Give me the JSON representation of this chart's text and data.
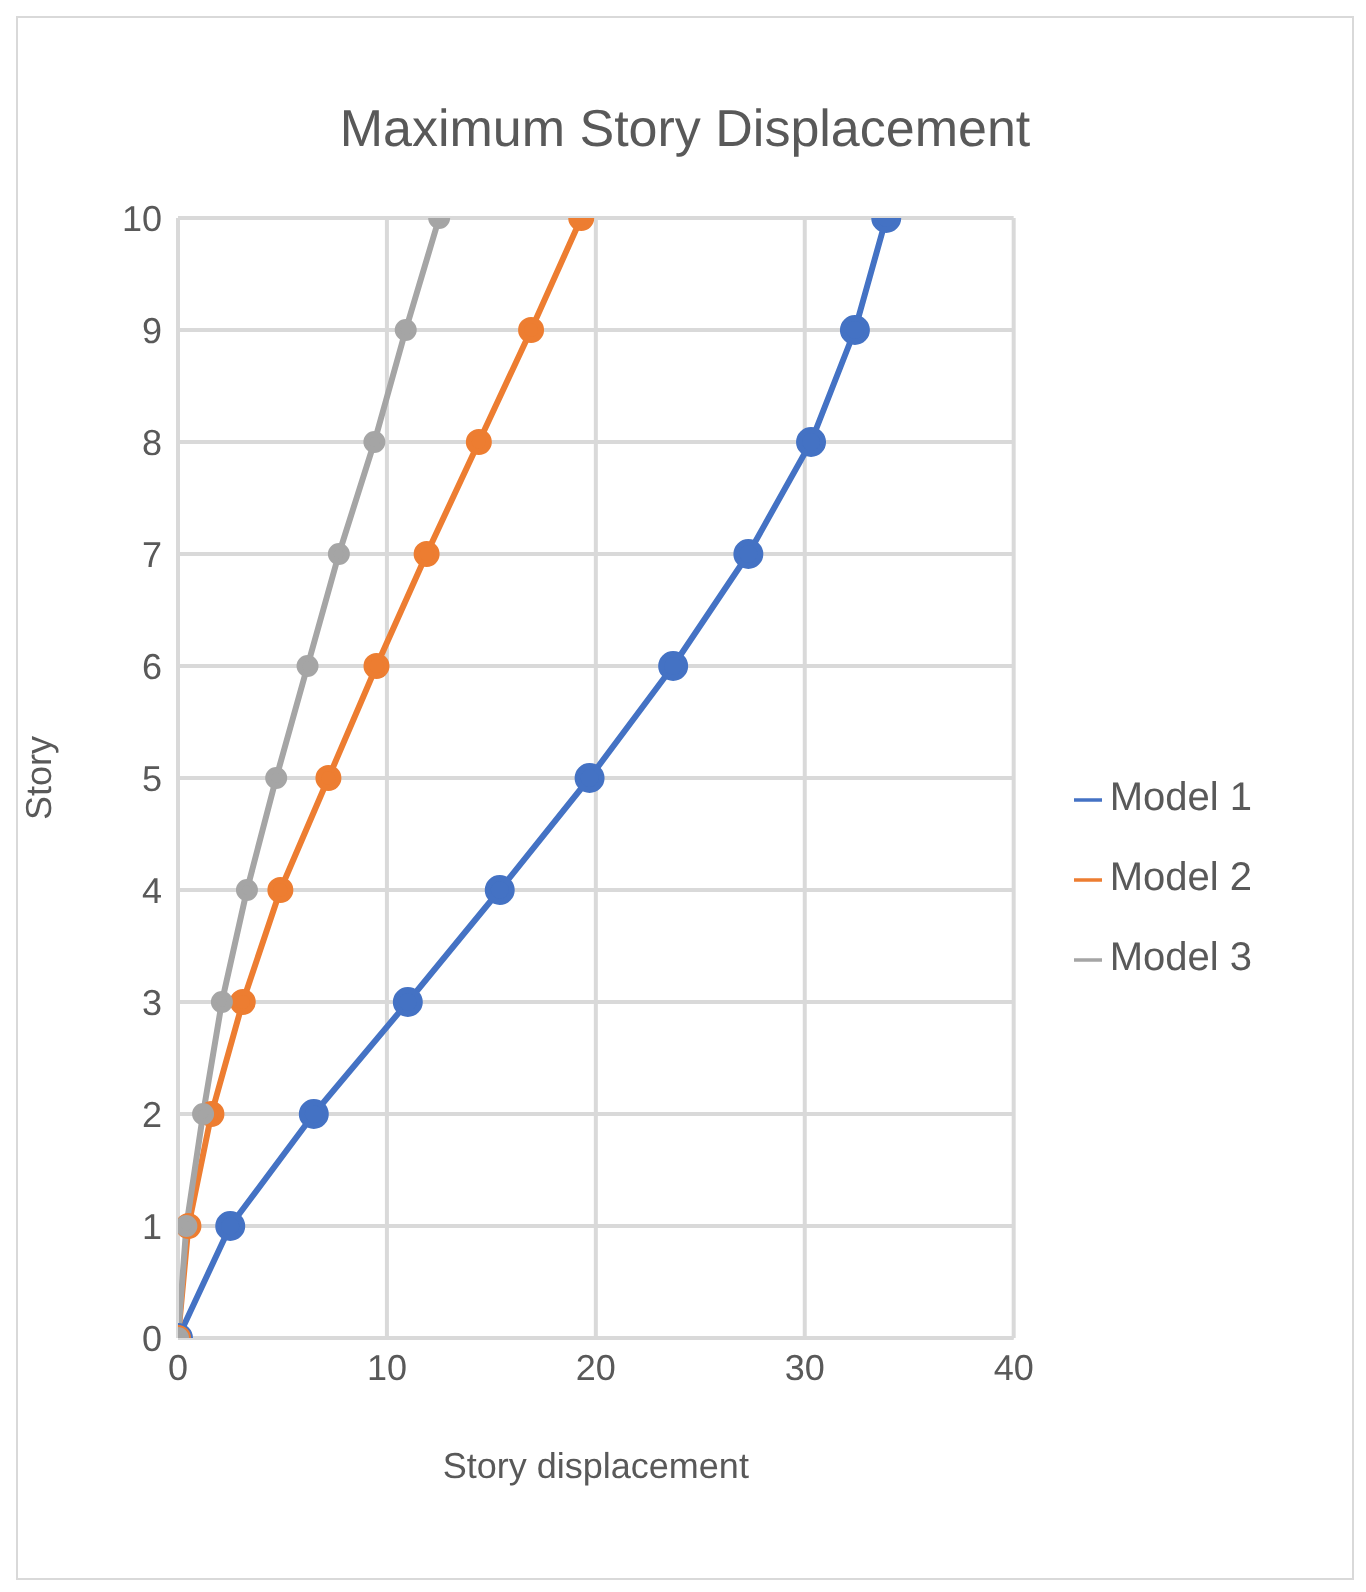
{
  "chart_data": {
    "type": "line",
    "title": "Maximum Story Displacement",
    "xlabel": "Story displacement",
    "ylabel": "Story",
    "xlim": [
      0,
      40
    ],
    "xticks": [
      0,
      10,
      20,
      30,
      40
    ],
    "ylim": [
      0,
      10
    ],
    "yticks": [
      0,
      1,
      2,
      3,
      4,
      5,
      6,
      7,
      8,
      9,
      10
    ],
    "grid": true,
    "legend": "right",
    "marker": "circle",
    "line_style": "solid",
    "series": [
      {
        "name": "Model 1",
        "color": "#4472c4",
        "x": [
          0,
          2.5,
          6.5,
          11,
          15.4,
          19.7,
          23.7,
          27.3,
          30.3,
          32.4,
          33.9
        ],
        "values": [
          0,
          1,
          2,
          3,
          4,
          5,
          6,
          7,
          8,
          9,
          10
        ]
      },
      {
        "name": "Model 2",
        "color": "#ed7d31",
        "x": [
          0,
          0.5,
          1.6,
          3.1,
          4.9,
          7.2,
          9.5,
          11.9,
          14.4,
          16.9,
          19.3
        ],
        "values": [
          0,
          1,
          2,
          3,
          4,
          5,
          6,
          7,
          8,
          9,
          10
        ]
      },
      {
        "name": "Model 3",
        "color": "#a5a5a5",
        "x": [
          0,
          0.4,
          1.2,
          2.1,
          3.3,
          4.7,
          6.2,
          7.7,
          9.4,
          10.9,
          12.5
        ],
        "values": [
          0,
          1,
          2,
          3,
          4,
          5,
          6,
          7,
          8,
          9,
          10
        ]
      }
    ]
  }
}
